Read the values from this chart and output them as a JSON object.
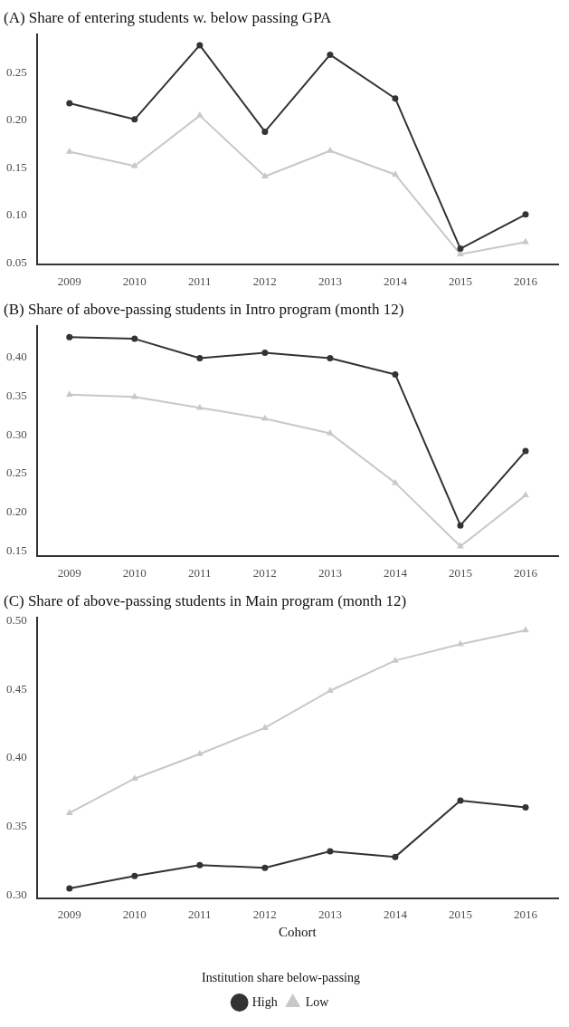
{
  "chart_data": [
    {
      "type": "line",
      "title": "(A) Share of entering students w. below passing GPA",
      "categories": [
        "2009",
        "2010",
        "2011",
        "2012",
        "2013",
        "2014",
        "2015",
        "2016"
      ],
      "ylim": [
        0.048,
        0.29
      ],
      "yticks": [
        {
          "value": 0.05,
          "label": "0.05"
        },
        {
          "value": 0.1,
          "label": "0.10"
        },
        {
          "value": 0.15,
          "label": "0.15"
        },
        {
          "value": 0.2,
          "label": "0.20"
        },
        {
          "value": 0.25,
          "label": "0.25"
        }
      ],
      "grid": false,
      "legend": false,
      "series": [
        {
          "color": "#333333",
          "marker": "circle",
          "values": [
            0.218,
            0.201,
            0.279,
            0.188,
            0.269,
            0.223,
            0.065,
            0.101
          ]
        },
        {
          "color": "#c8c8c8",
          "marker": "triangle",
          "values": [
            0.167,
            0.152,
            0.205,
            0.141,
            0.168,
            0.143,
            0.059,
            0.072
          ]
        }
      ]
    },
    {
      "type": "line",
      "title": "(B) Share of above-passing students in Intro program (month 12)",
      "categories": [
        "2009",
        "2010",
        "2011",
        "2012",
        "2013",
        "2014",
        "2015",
        "2016"
      ],
      "ylim": [
        0.143,
        0.44
      ],
      "yticks": [
        {
          "value": 0.15,
          "label": "0.15"
        },
        {
          "value": 0.2,
          "label": "0.20"
        },
        {
          "value": 0.25,
          "label": "0.25"
        },
        {
          "value": 0.3,
          "label": "0.30"
        },
        {
          "value": 0.35,
          "label": "0.35"
        },
        {
          "value": 0.4,
          "label": "0.40"
        }
      ],
      "grid": false,
      "legend": false,
      "series": [
        {
          "color": "#333333",
          "marker": "circle",
          "values": [
            0.426,
            0.424,
            0.399,
            0.406,
            0.399,
            0.378,
            0.183,
            0.279
          ]
        },
        {
          "color": "#c8c8c8",
          "marker": "triangle",
          "values": [
            0.352,
            0.349,
            0.335,
            0.321,
            0.302,
            0.238,
            0.156,
            0.222
          ]
        }
      ]
    },
    {
      "type": "line",
      "title": "(C) Share of above-passing students in Main program (month 12)",
      "xlabel": "Cohort",
      "legend_title": "Institution share below-passing",
      "categories": [
        "2009",
        "2010",
        "2011",
        "2012",
        "2013",
        "2014",
        "2015",
        "2016"
      ],
      "ylim": [
        0.298,
        0.502
      ],
      "yticks": [
        {
          "value": 0.3,
          "label": "0.30"
        },
        {
          "value": 0.35,
          "label": "0.35"
        },
        {
          "value": 0.4,
          "label": "0.40"
        },
        {
          "value": 0.45,
          "label": "0.45"
        },
        {
          "value": 0.5,
          "label": "0.50"
        }
      ],
      "grid": false,
      "legend": "bottom",
      "series": [
        {
          "name": "High",
          "color": "#333333",
          "marker": "circle",
          "values": [
            0.305,
            0.314,
            0.322,
            0.32,
            0.332,
            0.328,
            0.369,
            0.364
          ]
        },
        {
          "name": "Low",
          "color": "#c8c8c8",
          "marker": "triangle",
          "values": [
            0.36,
            0.385,
            0.403,
            0.422,
            0.449,
            0.471,
            0.483,
            0.493
          ]
        }
      ]
    }
  ]
}
